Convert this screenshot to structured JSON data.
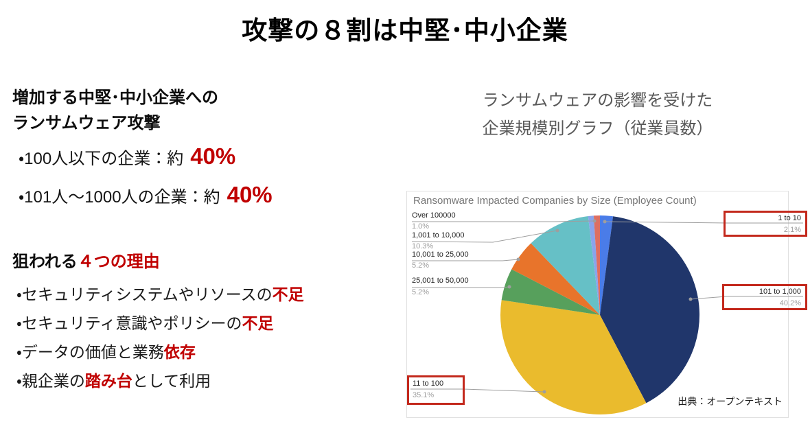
{
  "slide_title": "攻撃の８割は中堅･中小企業",
  "left_panel": {
    "heading": {
      "line1": "増加する中堅･中小企業への",
      "line2": "ランサムウェア攻撃"
    },
    "stats": [
      {
        "label": "・100人以下の企業：約",
        "value": "40%"
      },
      {
        "label": "・101人～1000人の企業：約",
        "value": "40%"
      }
    ],
    "reasons_heading": {
      "plain": "狙われる",
      "accent": "４つの理由"
    },
    "reasons": [
      {
        "pre": "・セキュリティシステムやリソースの",
        "accent": "不足",
        "post": ""
      },
      {
        "pre": "・セキュリティ意識やポリシーの",
        "accent": "不足",
        "post": ""
      },
      {
        "pre": "・データの価値と業務",
        "accent": "依存",
        "post": ""
      },
      {
        "pre": "・親企業の",
        "accent": "踏み台",
        "post": "として利用"
      }
    ]
  },
  "right_panel": {
    "caption": {
      "line1": "ランサムウェアの影響を受けた",
      "line2": "企業規模別グラフ（従業員数）"
    },
    "source": "出典：オープンテキスト"
  },
  "chart_data": {
    "type": "pie",
    "title": "Ransomware Impacted Companies by Size (Employee Count)",
    "unit": "%",
    "start_angle_deg": 0,
    "direction": "clockwise",
    "legend_position": "none",
    "slices": [
      {
        "label": "1 to 10",
        "pct": 2.1,
        "pct_label": "2.1%",
        "color": "#4a7ce8",
        "highlighted": true
      },
      {
        "label": "101 to 1,000",
        "pct": 40.2,
        "pct_label": "40.2%",
        "color": "#20366b",
        "highlighted": true
      },
      {
        "label": "11 to 100",
        "pct": 35.1,
        "pct_label": "35.1%",
        "color": "#eabb2d",
        "highlighted": true
      },
      {
        "label": "25,001 to 50,000",
        "pct": 5.2,
        "pct_label": "5.2%",
        "color": "#57a05c",
        "highlighted": false
      },
      {
        "label": "10,001 to 25,000",
        "pct": 5.2,
        "pct_label": "5.2%",
        "color": "#e8742b",
        "highlighted": false
      },
      {
        "label": "1,001 to 10,000",
        "pct": 10.3,
        "pct_label": "10.3%",
        "color": "#66c0c6",
        "highlighted": false
      },
      {
        "label": "",
        "pct": 0.9,
        "pct_label": "",
        "color": "#8aa4ec",
        "highlighted": false
      },
      {
        "label": "Over 100000",
        "pct": 1.0,
        "pct_label": "1.0%",
        "color": "#dd6f62",
        "highlighted": false
      }
    ],
    "highlight_box_color": "#c3281c"
  },
  "colors": {
    "accent_red": "#c00000",
    "caption_gray": "#595959",
    "chart_title_gray": "#757575",
    "leader_gray": "#9e9e9e"
  }
}
